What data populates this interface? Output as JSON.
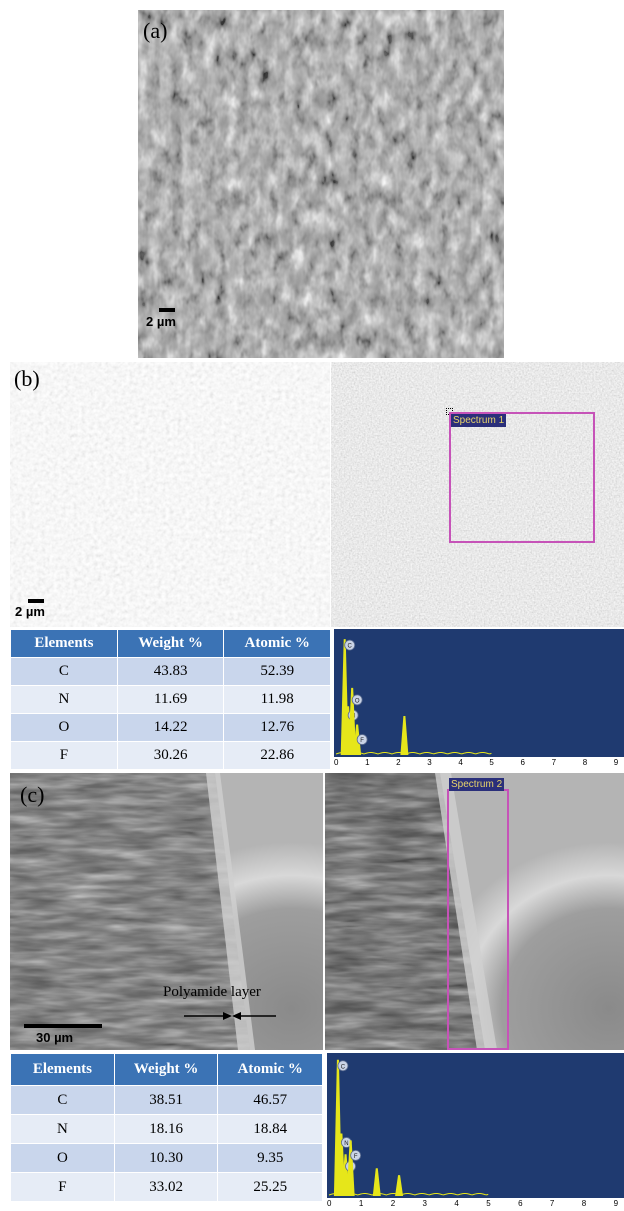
{
  "panels": {
    "a": {
      "label": "(a)",
      "scale_bar": "2 µm"
    },
    "b": {
      "label": "(b)",
      "scale_bar": "2 µm",
      "spectrum_box_label": "Spectrum 1",
      "table": {
        "headers": [
          "Elements",
          "Weight %",
          "Atomic %"
        ],
        "rows": [
          [
            "C",
            "43.83",
            "52.39"
          ],
          [
            "N",
            "11.69",
            "11.98"
          ],
          [
            "O",
            "14.22",
            "12.76"
          ],
          [
            "F",
            "30.26",
            "22.86"
          ]
        ]
      },
      "spectrum_peaks": [
        {
          "element": "C",
          "kev": 0.28,
          "height": 0.95
        },
        {
          "element": "N",
          "kev": 0.39,
          "height": 0.4
        },
        {
          "element": "O",
          "kev": 0.52,
          "height": 0.55
        },
        {
          "element": "F",
          "kev": 0.68,
          "height": 0.25
        },
        {
          "element": "",
          "kev": 2.2,
          "height": 0.32
        }
      ]
    },
    "c": {
      "label": "(c)",
      "scale_bar": "30 µm",
      "annotation": "Polyamide layer",
      "spectrum_box_label": "Spectrum 2",
      "table": {
        "headers": [
          "Elements",
          "Weight %",
          "Atomic %"
        ],
        "rows": [
          [
            "C",
            "38.51",
            "46.57"
          ],
          [
            "N",
            "18.16",
            "18.84"
          ],
          [
            "O",
            "10.30",
            "9.35"
          ],
          [
            "F",
            "33.02",
            "25.25"
          ]
        ]
      },
      "spectrum_peaks": [
        {
          "element": "C",
          "kev": 0.28,
          "height": 0.98
        },
        {
          "element": "N",
          "kev": 0.39,
          "height": 0.45
        },
        {
          "element": "O",
          "kev": 0.52,
          "height": 0.3
        },
        {
          "element": "F",
          "kev": 0.68,
          "height": 0.4
        },
        {
          "element": "",
          "kev": 1.5,
          "height": 0.2
        },
        {
          "element": "",
          "kev": 2.2,
          "height": 0.15
        }
      ]
    }
  },
  "spectrum_axis_ticks": [
    "0",
    "1",
    "2",
    "3",
    "4",
    "5",
    "6",
    "7",
    "8",
    "9"
  ],
  "colors": {
    "spectrum_bg": "#1f3a70",
    "spectrum_peak": "#e6e61a",
    "table_header": "#3b73b5",
    "spectrum_box": "#c653b8"
  }
}
